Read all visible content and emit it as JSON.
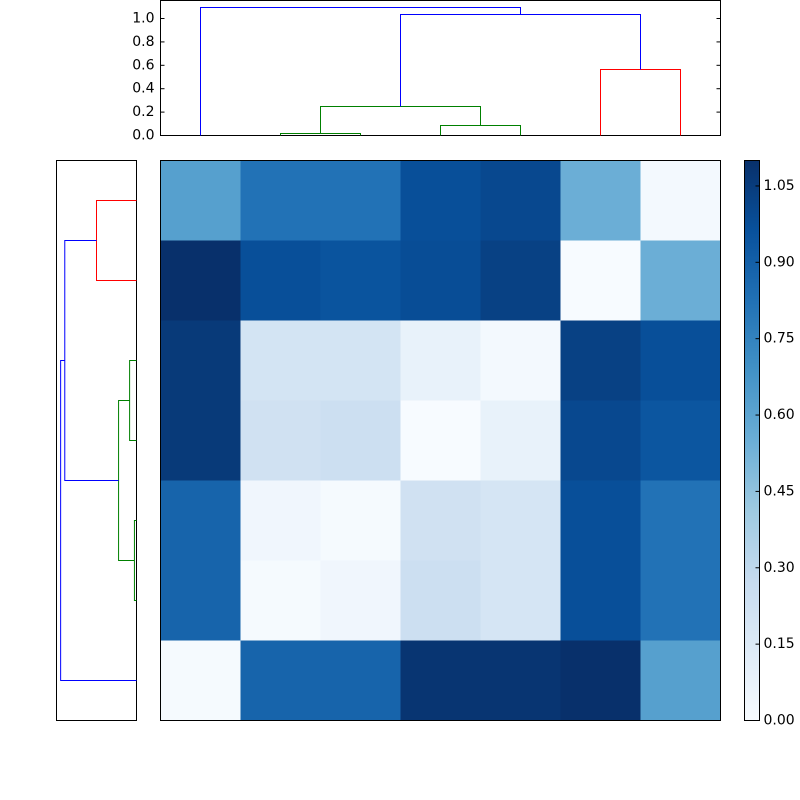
{
  "chart_data": [
    {
      "type": "dendrogram",
      "xlim": [
        0,
        70
      ],
      "ylim": [
        0,
        1.154
      ],
      "yticks": [
        {
          "value": 0,
          "label": "0.0"
        },
        {
          "value": 0.2,
          "label": "0.2"
        },
        {
          "value": 0.4,
          "label": "0.4"
        },
        {
          "value": 0.6,
          "label": "0.6"
        },
        {
          "value": 0.8,
          "label": "0.8"
        },
        {
          "value": 1.0,
          "label": "1.0"
        }
      ],
      "links": [
        {
          "color": "#008000",
          "x": [
            15,
            15,
            25,
            25
          ],
          "y": [
            0,
            0.017,
            0.017,
            0
          ]
        },
        {
          "color": "#008000",
          "x": [
            35,
            35,
            45,
            45
          ],
          "y": [
            0,
            0.085,
            0.085,
            0
          ]
        },
        {
          "color": "#008000",
          "x": [
            20,
            20,
            40,
            40
          ],
          "y": [
            0.017,
            0.248,
            0.248,
            0.085
          ]
        },
        {
          "color": "#ff0000",
          "x": [
            55,
            55,
            65,
            65
          ],
          "y": [
            0,
            0.564,
            0.564,
            0
          ]
        },
        {
          "color": "#0000ff",
          "x": [
            30,
            30,
            60,
            60
          ],
          "y": [
            0.248,
            1.034,
            1.034,
            0.564
          ]
        },
        {
          "color": "#0000ff",
          "x": [
            5,
            5,
            45,
            45
          ],
          "y": [
            0,
            1.094,
            1.094,
            1.034
          ]
        }
      ]
    },
    {
      "type": "dendrogram",
      "xlim": [
        1.16,
        0
      ],
      "ylim": [
        70,
        0
      ],
      "links": [
        {
          "color": "#ff0000",
          "x": [
            0,
            0.58,
            0.58,
            0
          ],
          "y": [
            5,
            5,
            15,
            15
          ]
        },
        {
          "color": "#008000",
          "x": [
            0,
            0.1,
            0.1,
            0
          ],
          "y": [
            25,
            25,
            35,
            35
          ]
        },
        {
          "color": "#008000",
          "x": [
            0,
            0.03,
            0.03,
            0
          ],
          "y": [
            45,
            45,
            55,
            55
          ]
        },
        {
          "color": "#008000",
          "x": [
            0.1,
            0.26,
            0.26,
            0.03
          ],
          "y": [
            30,
            30,
            50,
            50
          ]
        },
        {
          "color": "#0000ff",
          "x": [
            0.58,
            1.04,
            1.04,
            0.26
          ],
          "y": [
            10,
            10,
            40,
            40
          ]
        },
        {
          "color": "#0000ff",
          "x": [
            1.04,
            1.1,
            1.1,
            0
          ],
          "y": [
            25,
            25,
            65,
            65
          ]
        }
      ]
    },
    {
      "type": "heatmap",
      "values": [
        [
          0.62,
          0.82,
          0.82,
          0.97,
          1.0,
          0.55,
          0.02
        ],
        [
          1.1,
          0.97,
          0.95,
          0.98,
          1.03,
          0.0,
          0.55
        ],
        [
          1.06,
          0.2,
          0.2,
          0.08,
          0.02,
          1.03,
          0.97
        ],
        [
          1.06,
          0.22,
          0.24,
          0.0,
          0.08,
          1.0,
          0.94
        ],
        [
          0.88,
          0.04,
          0.01,
          0.22,
          0.19,
          0.97,
          0.82
        ],
        [
          0.88,
          0.01,
          0.04,
          0.24,
          0.19,
          0.97,
          0.82
        ],
        [
          0.01,
          0.88,
          0.88,
          1.08,
          1.08,
          1.1,
          0.62
        ]
      ],
      "clim": [
        0,
        1.1
      ],
      "colormap": [
        "#f7fbff",
        "#deebf7",
        "#c6dbef",
        "#9ecae1",
        "#6baed6",
        "#4292c6",
        "#2171b5",
        "#08519c",
        "#08306b"
      ],
      "cticks": [
        {
          "value": 0,
          "label": "0.00"
        },
        {
          "value": 0.15,
          "label": "0.15"
        },
        {
          "value": 0.3,
          "label": "0.30"
        },
        {
          "value": 0.45,
          "label": "0.45"
        },
        {
          "value": 0.6,
          "label": "0.60"
        },
        {
          "value": 0.75,
          "label": "0.75"
        },
        {
          "value": 0.9,
          "label": "0.90"
        },
        {
          "value": 1.05,
          "label": "1.05"
        }
      ]
    }
  ]
}
